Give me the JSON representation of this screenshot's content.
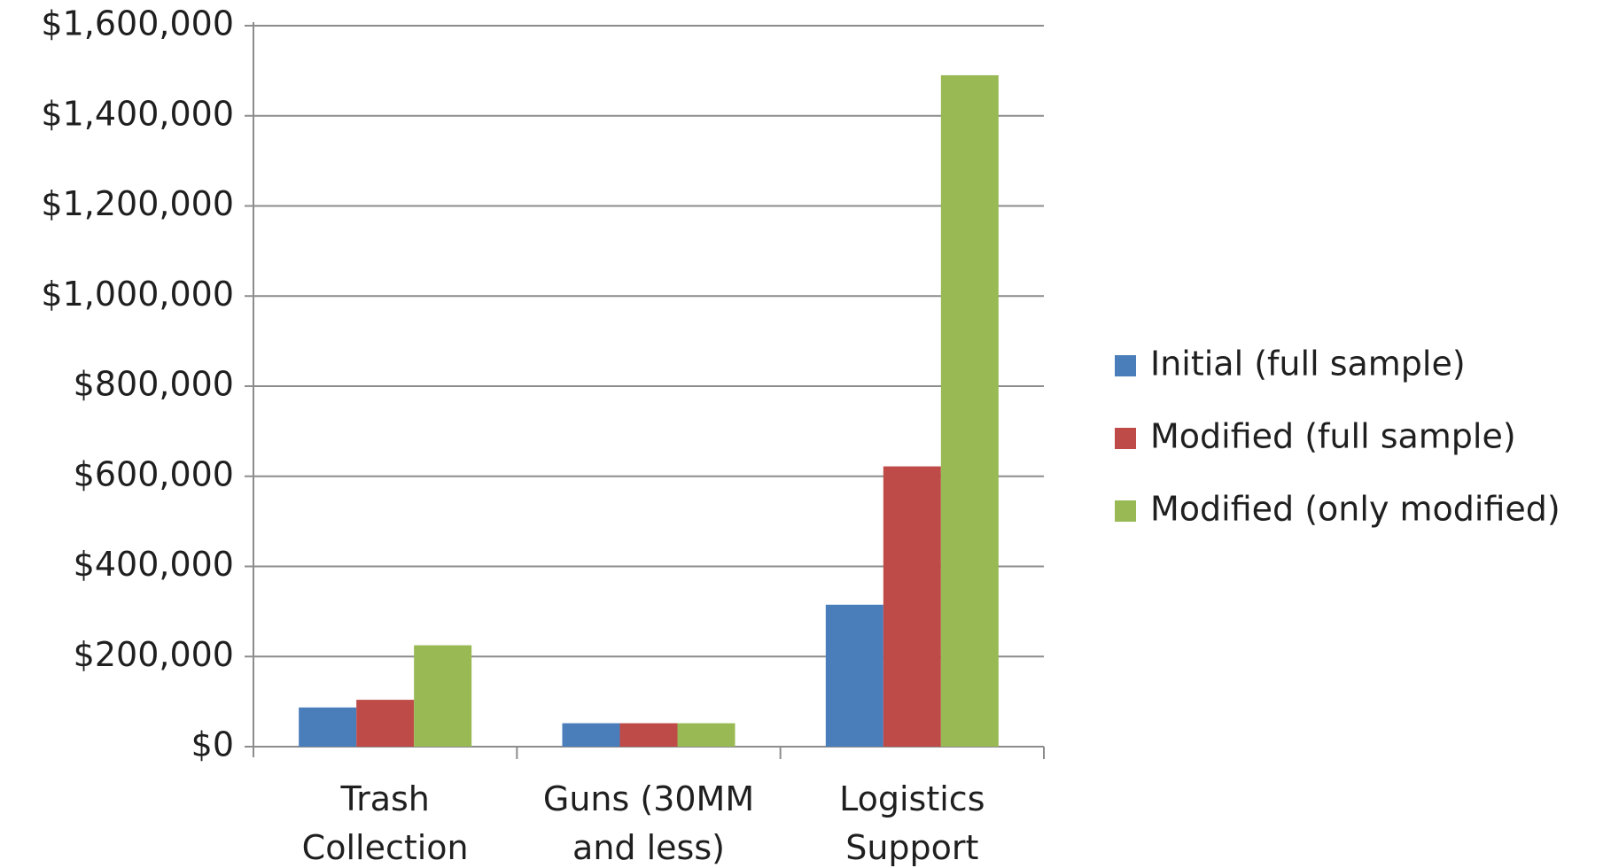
{
  "chart_data": {
    "type": "bar",
    "title": "",
    "xlabel": "",
    "ylabel": "",
    "ylim": [
      0,
      1600000
    ],
    "y_ticks": [
      0,
      200000,
      400000,
      600000,
      800000,
      1000000,
      1200000,
      1400000,
      1600000
    ],
    "y_tick_labels": [
      "$0",
      "$200,000",
      "$400,000",
      "$600,000",
      "$800,000",
      "$1,000,000",
      "$1,200,000",
      "$1,400,000",
      "$1,600,000"
    ],
    "categories": [
      [
        "Trash",
        "Collection"
      ],
      [
        "Guns (30MM",
        "and less)"
      ],
      [
        "Logistics",
        "Support"
      ]
    ],
    "series": [
      {
        "name": "Initial (full sample)",
        "color": "#4a7ebb",
        "values": [
          87000,
          52000,
          315000
        ]
      },
      {
        "name": "Modified (full sample)",
        "color": "#be4b48",
        "values": [
          104000,
          52000,
          622000
        ]
      },
      {
        "name": "Modified (only modified)",
        "color": "#98b954",
        "values": [
          225000,
          52000,
          1490000
        ]
      }
    ],
    "grid": true,
    "legend_position": "right"
  }
}
